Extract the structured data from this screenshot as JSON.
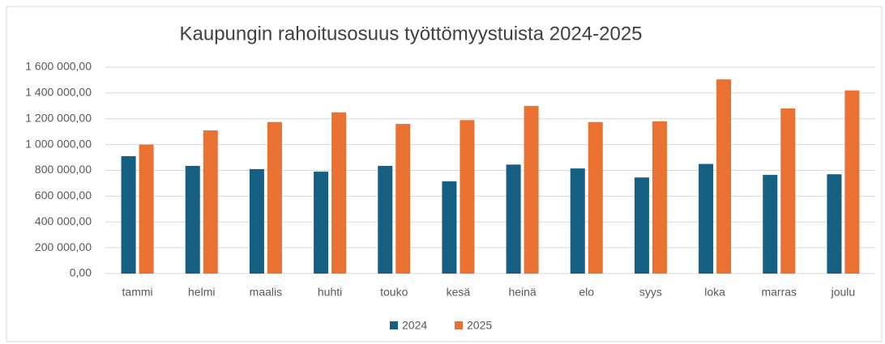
{
  "chart_data": {
    "type": "bar",
    "title": "Kaupungin rahoitusosuus työttömyystuista 2024-2025",
    "categories": [
      "tammi",
      "helmi",
      "maalis",
      "huhti",
      "touko",
      "kesä",
      "heinä",
      "elo",
      "syys",
      "loka",
      "marras",
      "joulu"
    ],
    "series": [
      {
        "name": "2024",
        "color": "#156082",
        "values": [
          910000,
          835000,
          810000,
          790000,
          835000,
          715000,
          845000,
          815000,
          745000,
          850000,
          765000,
          770000
        ]
      },
      {
        "name": "2025",
        "color": "#e97132",
        "values": [
          1000000,
          1110000,
          1175000,
          1250000,
          1160000,
          1190000,
          1300000,
          1175000,
          1180000,
          1505000,
          1280000,
          1420000
        ]
      }
    ],
    "ylim": [
      0,
      1600000
    ],
    "yticks": [
      {
        "value": 0,
        "label": "0,00"
      },
      {
        "value": 200000,
        "label": "200 000,00"
      },
      {
        "value": 400000,
        "label": "400 000,00"
      },
      {
        "value": 600000,
        "label": "600 000,00"
      },
      {
        "value": 800000,
        "label": "800 000,00"
      },
      {
        "value": 1000000,
        "label": "1 000 000,00"
      },
      {
        "value": 1200000,
        "label": "1 200 000,00"
      },
      {
        "value": 1400000,
        "label": "1 400 000,00"
      },
      {
        "value": 1600000,
        "label": "1 600 000,00"
      }
    ],
    "grid": true,
    "legend": "bottom"
  }
}
